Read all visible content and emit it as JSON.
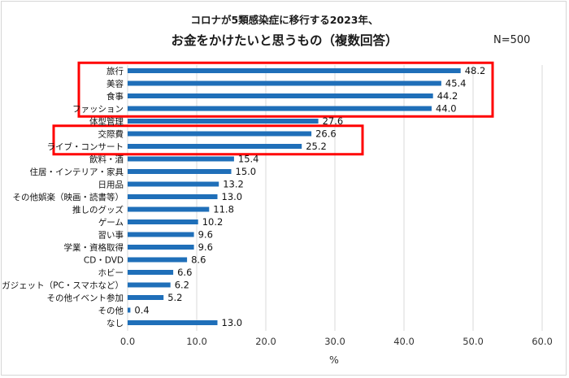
{
  "header": {
    "title_line1": "コロナが5類感染症に移行する2023年、",
    "title_line2": "お金をかけたいと思うもの（複数回答）",
    "sample": "N=500"
  },
  "colors": {
    "bar": "#1f6fb9",
    "highlight": "#ff0000",
    "grid": "#d9d9d9"
  },
  "chart_data": {
    "type": "bar",
    "orientation": "horizontal",
    "categories": [
      "旅行",
      "美容",
      "食事",
      "ファッション",
      "体型管理",
      "交際費",
      "ライブ・コンサート",
      "飲料・酒",
      "住居・インテリア・家具",
      "日用品",
      "その他娯楽（映画・読書等）",
      "推しのグッズ",
      "ゲーム",
      "習い事",
      "学業・資格取得",
      "CD・DVD",
      "ホビー",
      "ガジェット（PC・スマホなど）",
      "その他イベント参加",
      "その他",
      "なし"
    ],
    "values": [
      48.2,
      45.4,
      44.2,
      44.0,
      27.6,
      26.6,
      25.2,
      15.4,
      15.0,
      13.2,
      13.0,
      11.8,
      10.2,
      9.6,
      9.6,
      8.6,
      6.6,
      6.2,
      5.2,
      0.4,
      13.0
    ],
    "xlim": [
      0,
      60
    ],
    "xticks": [
      "0.0",
      "10.0",
      "20.0",
      "30.0",
      "40.0",
      "50.0",
      "60.0"
    ],
    "xlabel": "%",
    "grid": "vertical",
    "highlight_groups": [
      {
        "from": 0,
        "to": 3
      },
      {
        "from": 5,
        "to": 6
      }
    ]
  }
}
